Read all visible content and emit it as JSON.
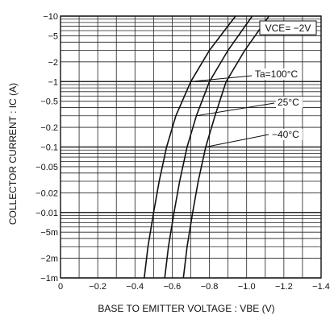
{
  "chart_data": {
    "type": "line",
    "xlabel": "BASE TO EMITTER VOLTAGE : VBE (V)",
    "ylabel": "COLLECTOR CURRENT : IC (A)",
    "xlim": [
      0,
      -1.4
    ],
    "ylim_abs": [
      0.001,
      10
    ],
    "y_scale": "log",
    "grid": true,
    "x_ticks": [
      {
        "v": 0,
        "label": "0"
      },
      {
        "v": -0.2,
        "label": "−0.2"
      },
      {
        "v": -0.4,
        "label": "−0.4"
      },
      {
        "v": -0.6,
        "label": "−0.6"
      },
      {
        "v": -0.8,
        "label": "−0.8"
      },
      {
        "v": -1.0,
        "label": "−1.0"
      },
      {
        "v": -1.2,
        "label": "−1.2"
      },
      {
        "v": -1.4,
        "label": "−1.4"
      }
    ],
    "y_ticks": [
      {
        "v": 10,
        "label": "−10"
      },
      {
        "v": 5,
        "label": "−5"
      },
      {
        "v": 2,
        "label": "−2"
      },
      {
        "v": 1,
        "label": "−1"
      },
      {
        "v": 0.5,
        "label": "−0.5"
      },
      {
        "v": 0.2,
        "label": "−0.2"
      },
      {
        "v": 0.1,
        "label": "−0.1"
      },
      {
        "v": 0.05,
        "label": "−0.05"
      },
      {
        "v": 0.02,
        "label": "−0.02"
      },
      {
        "v": 0.01,
        "label": "−0.01"
      },
      {
        "v": 0.005,
        "label": "−5m"
      },
      {
        "v": 0.002,
        "label": "−2m"
      },
      {
        "v": 0.001,
        "label": "−1m"
      }
    ],
    "condition_label": "VCE= −2V",
    "series": [
      {
        "name": "Ta=100°C",
        "x": [
          -0.45,
          -0.47,
          -0.5,
          -0.53,
          -0.57,
          -0.62,
          -0.7,
          -0.8,
          -0.94
        ],
        "y": [
          0.001,
          0.003,
          0.01,
          0.03,
          0.1,
          0.3,
          1,
          3,
          10
        ]
      },
      {
        "name": "25°C",
        "x": [
          -0.56,
          -0.58,
          -0.61,
          -0.64,
          -0.68,
          -0.73,
          -0.8,
          -0.9,
          -1.03
        ],
        "y": [
          0.001,
          0.003,
          0.01,
          0.03,
          0.1,
          0.3,
          1,
          3,
          10
        ]
      },
      {
        "name": "−40°C",
        "x": [
          -0.66,
          -0.68,
          -0.71,
          -0.74,
          -0.78,
          -0.83,
          -0.89,
          -0.99,
          -1.12
        ],
        "y": [
          0.001,
          0.003,
          0.01,
          0.03,
          0.1,
          0.3,
          1,
          3,
          10
        ]
      }
    ]
  }
}
